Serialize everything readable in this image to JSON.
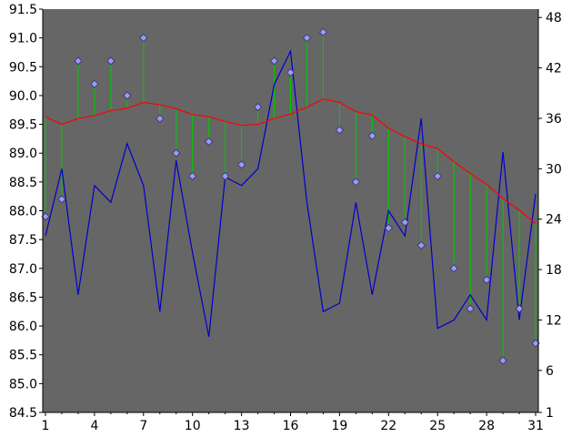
{
  "chart_data": {
    "type": "line",
    "title": "",
    "xlabel": "",
    "ylabel": "",
    "x": [
      1,
      2,
      3,
      4,
      5,
      6,
      7,
      8,
      9,
      10,
      11,
      12,
      13,
      14,
      15,
      16,
      17,
      18,
      19,
      20,
      21,
      22,
      23,
      24,
      25,
      26,
      27,
      28,
      29,
      30,
      31
    ],
    "x_ticks": [
      1,
      4,
      7,
      10,
      13,
      16,
      19,
      22,
      25,
      28,
      31
    ],
    "xlim": [
      1,
      31
    ],
    "y_left": {
      "lim": [
        84.5,
        91.5
      ],
      "ticks": [
        "84.5",
        "85.0",
        "85.5",
        "86.0",
        "86.5",
        "87.0",
        "87.5",
        "88.0",
        "88.5",
        "89.0",
        "89.5",
        "90.0",
        "90.5",
        "91.0",
        "91.5"
      ]
    },
    "y_right": {
      "lim": [
        1,
        49
      ],
      "ticks": [
        "1",
        "6",
        "12",
        "18",
        "24",
        "30",
        "36",
        "42",
        "48"
      ]
    },
    "series": [
      {
        "color": "#9999ff",
        "axis": "left",
        "style": "diamond-markers",
        "values": [
          87.9,
          88.2,
          90.6,
          90.2,
          90.6,
          90.0,
          91.0,
          89.6,
          89.0,
          88.6,
          89.2,
          88.6,
          88.8,
          89.8,
          90.6,
          90.4,
          91.0,
          91.1,
          89.4,
          88.5,
          89.3,
          87.7,
          87.8,
          87.4,
          88.6,
          87.0,
          86.3,
          86.8,
          85.4,
          86.3,
          85.7
        ]
      },
      {
        "color": "#ff0000",
        "axis": "left",
        "style": "line",
        "values": [
          89.63,
          89.5,
          89.6,
          89.65,
          89.74,
          89.78,
          89.88,
          89.84,
          89.77,
          89.67,
          89.63,
          89.55,
          89.48,
          89.5,
          89.6,
          89.68,
          89.8,
          89.94,
          89.88,
          89.72,
          89.66,
          89.43,
          89.29,
          89.16,
          89.08,
          88.85,
          88.65,
          88.46,
          88.21,
          88.01,
          87.78
        ]
      },
      {
        "color": "#0000cc",
        "axis": "right",
        "style": "line",
        "values": [
          22,
          30,
          15,
          28,
          26,
          33,
          28,
          13,
          31,
          20,
          10,
          29,
          28,
          30,
          40,
          44,
          26,
          13,
          14,
          26,
          15,
          25,
          22,
          36,
          11,
          12,
          15,
          12,
          32,
          12,
          27
        ]
      }
    ],
    "drop_lines": {
      "color": "#00cc00",
      "from_series": 0,
      "to_series": 1
    }
  }
}
